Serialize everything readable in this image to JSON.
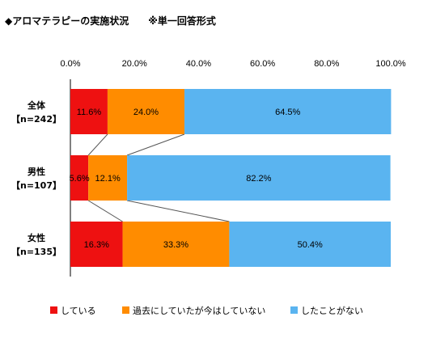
{
  "chart_data": {
    "type": "bar",
    "orientation": "horizontal",
    "stacked": true,
    "title": "◆アロマテラピーの実施状況　　※単一回答形式",
    "categories": [
      {
        "name": "全体",
        "n": "【n=242】"
      },
      {
        "name": "男性",
        "n": "【n=107】"
      },
      {
        "name": "女性",
        "n": "【n=135】"
      }
    ],
    "series": [
      {
        "name": "している",
        "color": "#ee1111",
        "values": [
          11.6,
          5.6,
          16.3
        ]
      },
      {
        "name": "過去にしていたが今はしていない",
        "color": "#ff8c00",
        "values": [
          24.0,
          12.1,
          33.3
        ]
      },
      {
        "name": "したことがない",
        "color": "#5ab4f0",
        "values": [
          64.5,
          82.2,
          50.4
        ]
      }
    ],
    "value_labels": [
      [
        "11.6%",
        "24.0%",
        "64.5%"
      ],
      [
        "5.6%",
        "12.1%",
        "82.2%"
      ],
      [
        "16.3%",
        "33.3%",
        "50.4%"
      ]
    ],
    "xlim": [
      0,
      100
    ],
    "x_ticks": [
      "0.0%",
      "20.0%",
      "40.0%",
      "60.0%",
      "80.0%",
      "100.0%"
    ],
    "axis_position": "top",
    "legend_position": "bottom",
    "grid": false
  }
}
